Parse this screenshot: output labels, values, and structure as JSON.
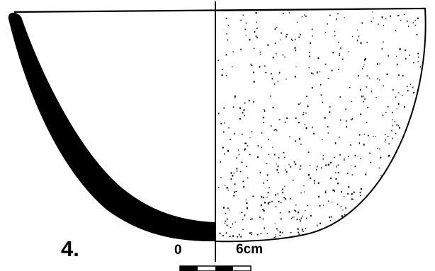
{
  "figure": {
    "number_label": "4.",
    "scale_bar": {
      "start_label": "0",
      "end_label": "6cm"
    }
  },
  "colors": {
    "ink": "#000000",
    "paper": "#ffffff"
  }
}
